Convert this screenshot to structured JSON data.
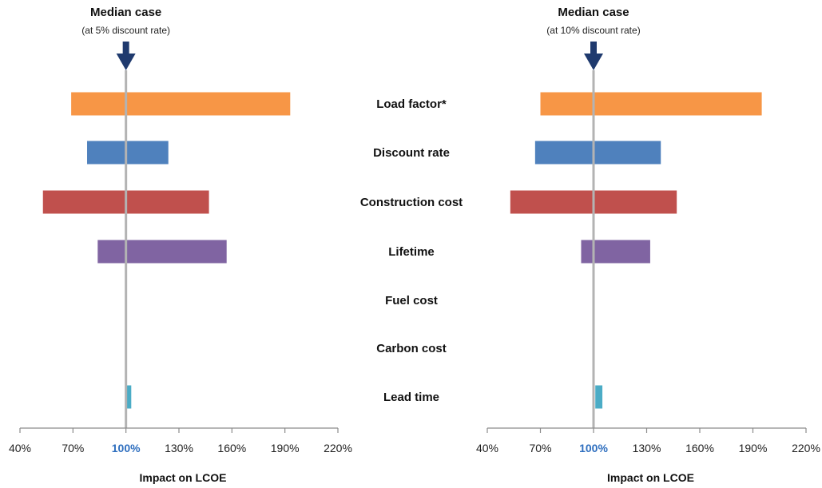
{
  "chart_data": [
    {
      "type": "bar",
      "orientation": "horizontal",
      "median_title": "Median case",
      "median_subtitle": "(at 5% discount rate)",
      "xlabel": "Impact on LCOE",
      "xlim": [
        40,
        220
      ],
      "xticks": [
        "40%",
        "70%",
        "100%",
        "130%",
        "160%",
        "190%",
        "220%"
      ],
      "reference": 100,
      "categories": [
        "Load factor*",
        "Discount rate",
        "Construction cost",
        "Lifetime",
        "Fuel cost",
        "Carbon cost",
        "Lead time"
      ],
      "bars": [
        {
          "category": "Load factor*",
          "low": 69,
          "high": 193,
          "color": "#f79646"
        },
        {
          "category": "Discount rate",
          "low": 78,
          "high": 124,
          "color": "#4f81bd"
        },
        {
          "category": "Construction cost",
          "low": 53,
          "high": 147,
          "color": "#c0504d"
        },
        {
          "category": "Lifetime",
          "low": 84,
          "high": 157,
          "color": "#8064a2"
        },
        {
          "category": "Fuel cost",
          "low": 100,
          "high": 100,
          "color": "#4bacc6"
        },
        {
          "category": "Carbon cost",
          "low": 100,
          "high": 100,
          "color": "#4bacc6"
        },
        {
          "category": "Lead time",
          "low": 100,
          "high": 103,
          "color": "#4bacc6"
        }
      ]
    },
    {
      "type": "bar",
      "orientation": "horizontal",
      "median_title": "Median case",
      "median_subtitle": "(at 10% discount rate)",
      "xlabel": "Impact on LCOE",
      "xlim": [
        40,
        220
      ],
      "xticks": [
        "40%",
        "70%",
        "100%",
        "130%",
        "160%",
        "190%",
        "220%"
      ],
      "reference": 100,
      "categories": [
        "Load factor*",
        "Discount rate",
        "Construction cost",
        "Lifetime",
        "Fuel cost",
        "Carbon cost",
        "Lead time"
      ],
      "bars": [
        {
          "category": "Load factor*",
          "low": 70,
          "high": 195,
          "color": "#f79646"
        },
        {
          "category": "Discount rate",
          "low": 67,
          "high": 138,
          "color": "#4f81bd"
        },
        {
          "category": "Construction cost",
          "low": 53,
          "high": 147,
          "color": "#c0504d"
        },
        {
          "category": "Lifetime",
          "low": 93,
          "high": 132,
          "color": "#8064a2"
        },
        {
          "category": "Fuel cost",
          "low": 100,
          "high": 100,
          "color": "#4bacc6"
        },
        {
          "category": "Carbon cost",
          "low": 100,
          "high": 100,
          "color": "#4bacc6"
        },
        {
          "category": "Lead time",
          "low": 101,
          "high": 105,
          "color": "#4bacc6"
        }
      ]
    }
  ],
  "colors": {
    "reference_line": "#b3b3b3",
    "axis": "#8c8c8c",
    "median_arrow": "#1f3a6e",
    "highlight_tick": "#2f6fbf"
  }
}
